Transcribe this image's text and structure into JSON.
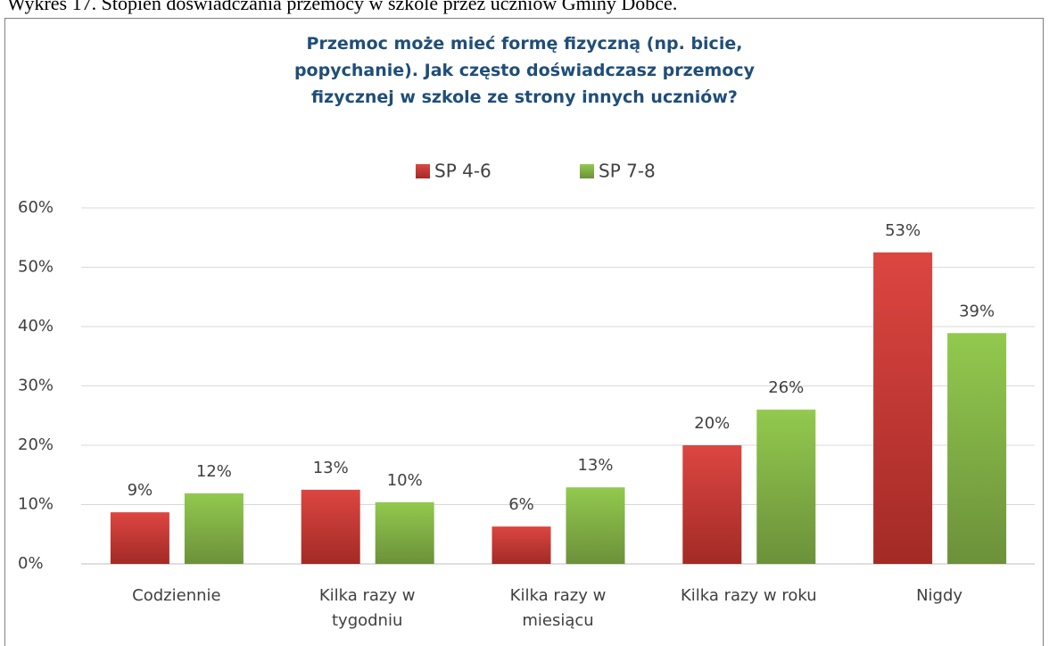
{
  "caption": "Wykres 17. Stopień doświadczania przemocy w szkole przez uczniów Gminy Dobce.",
  "chart_data": {
    "type": "bar",
    "title": "Przemoc może mieć formę fizyczną (np. bicie,\npopychanie). Jak często doświadczasz przemocy\nfizycznej w szkole ze strony innych uczniów?",
    "categories": [
      "Codziennie",
      "Kilka razy w\ntygodniu",
      "Kilka razy w\nmiesiącu",
      "Kilka razy w roku",
      "Nigdy"
    ],
    "series": [
      {
        "name": "SP 4-6",
        "color": "#c83a35",
        "values": [
          8.7,
          12.5,
          6.3,
          20.0,
          52.5
        ],
        "value_labels": [
          "9%",
          "13%",
          "6%",
          "20%",
          "53%"
        ]
      },
      {
        "name": "SP 7-8",
        "color": "#7ea640",
        "values": [
          11.9,
          10.4,
          12.9,
          26.0,
          38.9
        ],
        "value_labels": [
          "12%",
          "10%",
          "13%",
          "26%",
          "39%"
        ]
      }
    ],
    "ylim": [
      0,
      60
    ],
    "yticks": [
      {
        "value": 0,
        "label": "0%"
      },
      {
        "value": 10,
        "label": "10%"
      },
      {
        "value": 20,
        "label": "20%"
      },
      {
        "value": 30,
        "label": "30%"
      },
      {
        "value": 40,
        "label": "40%"
      },
      {
        "value": 50,
        "label": "50%"
      },
      {
        "value": 60,
        "label": "60%"
      }
    ],
    "grid": true,
    "legend": "top"
  }
}
